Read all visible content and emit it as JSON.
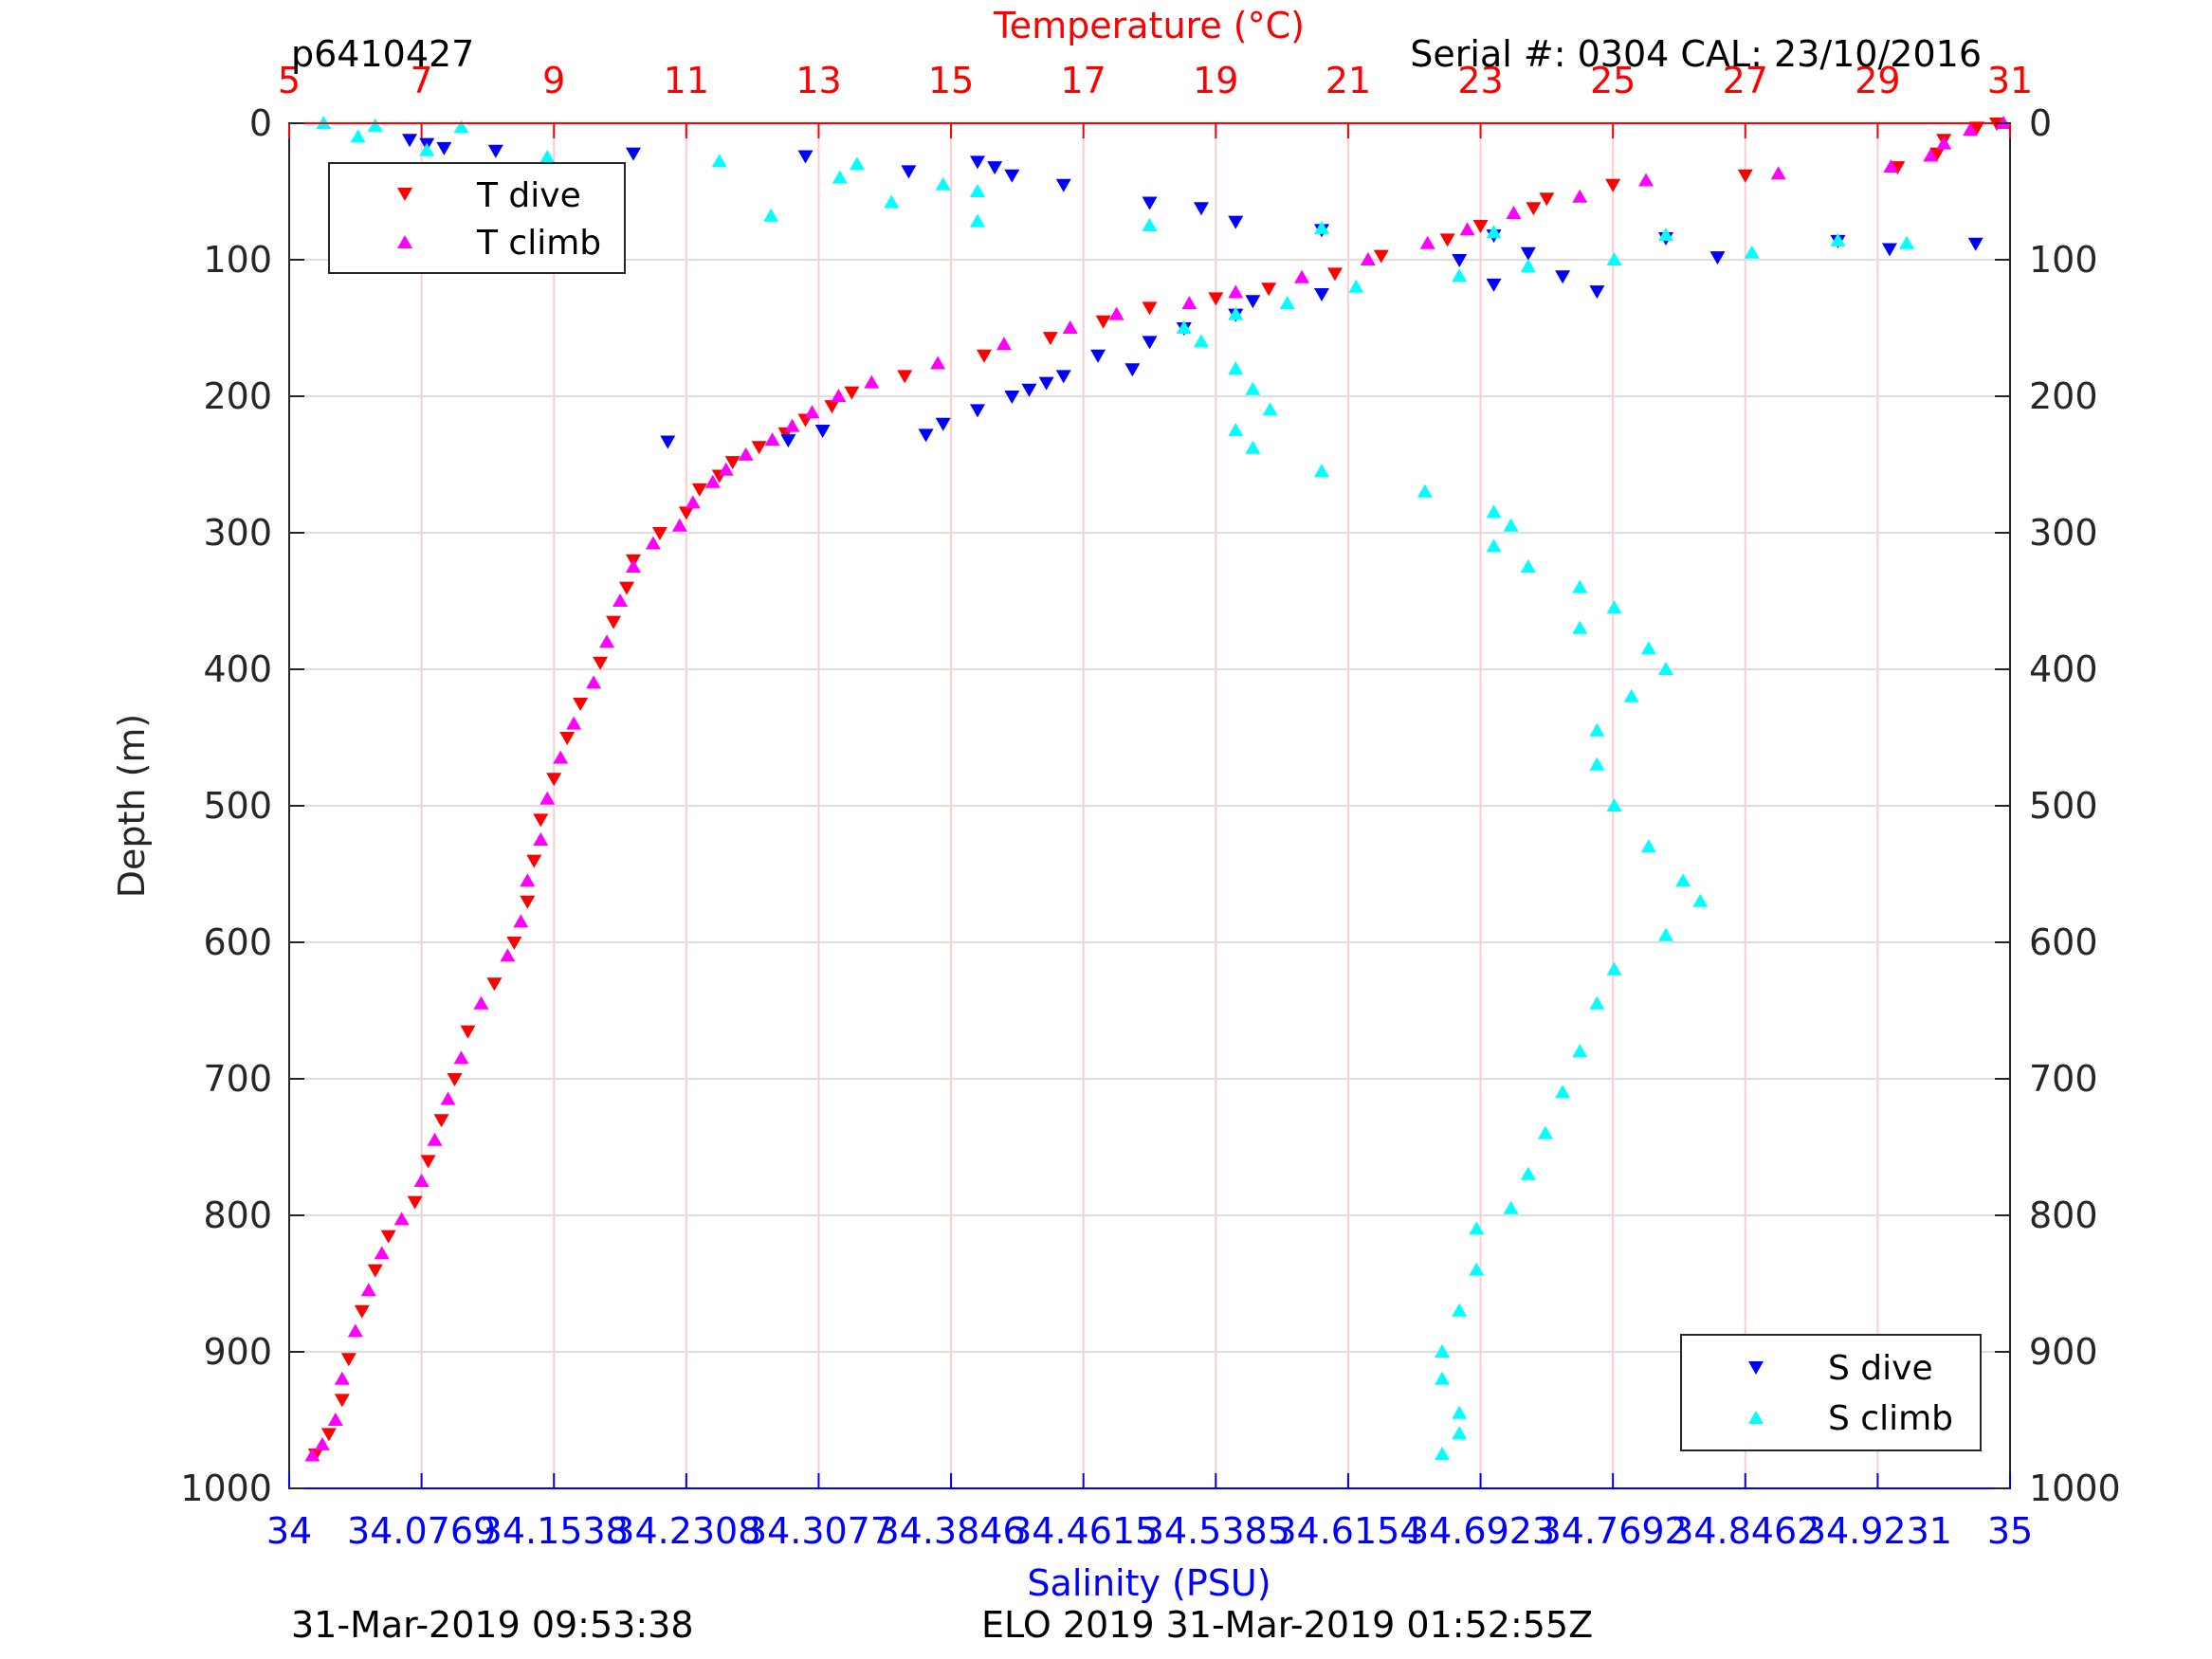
{
  "header": {
    "glider_id": "p6410427",
    "serial": "Serial #: 0304  CAL: 23/10/2016"
  },
  "footer": {
    "left": "31-Mar-2019 09:53:38",
    "right": "ELO 2019 31-Mar-2019 01:52:55Z"
  },
  "colors": {
    "t_dive": "#ff0000",
    "t_climb": "#ff00ff",
    "s_dive": "#0000ff",
    "s_climb": "#00ffff",
    "temp_axis": "#ff0000",
    "sal_axis": "#0000ff",
    "grid_temp": "#ffcccc",
    "grid_depth": "#dddddd"
  },
  "chart_data": {
    "type": "scatter",
    "title": "",
    "ylabel": "Depth (m)",
    "ylim": [
      0,
      1000
    ],
    "y_reversed": true,
    "y_ticks": [
      "0",
      "100",
      "200",
      "300",
      "400",
      "500",
      "600",
      "700",
      "800",
      "900",
      "1000"
    ],
    "temperature_axis": {
      "label": "Temperature (°C)",
      "position": "top",
      "range": [
        5,
        31
      ],
      "ticks": [
        "5",
        "7",
        "9",
        "11",
        "13",
        "15",
        "17",
        "19",
        "21",
        "23",
        "25",
        "27",
        "29",
        "31"
      ]
    },
    "salinity_axis": {
      "label": "Salinity (PSU)",
      "position": "bottom",
      "range": [
        34,
        35
      ],
      "ticks": [
        "34",
        "34.0769",
        "34.1538",
        "34.2308",
        "34.3077",
        "34.3846",
        "34.4615",
        "34.5385",
        "34.6154",
        "34.6923",
        "34.7692",
        "34.8462",
        "34.9231",
        "35"
      ]
    },
    "grid": true,
    "legend_temperature": {
      "placement": "top-left",
      "entries": [
        "T dive",
        "T climb"
      ]
    },
    "legend_salinity": {
      "placement": "bottom-right",
      "entries": [
        "S dive",
        "S climb"
      ]
    },
    "series": [
      {
        "name": "T dive",
        "axis": "temperature",
        "marker": "triangle-down",
        "points": [
          [
            30.8,
            0
          ],
          [
            30.5,
            3
          ],
          [
            30.0,
            12
          ],
          [
            29.9,
            22
          ],
          [
            29.3,
            32
          ],
          [
            27,
            38
          ],
          [
            25,
            45
          ],
          [
            24,
            55
          ],
          [
            23.8,
            62
          ],
          [
            23,
            75
          ],
          [
            22.5,
            85
          ],
          [
            21.5,
            97
          ],
          [
            20.8,
            110
          ],
          [
            19.8,
            121
          ],
          [
            19,
            128
          ],
          [
            18,
            135
          ],
          [
            17.3,
            145
          ],
          [
            16.5,
            157
          ],
          [
            15.5,
            170
          ],
          [
            14.3,
            185
          ],
          [
            13.5,
            197
          ],
          [
            13.2,
            207
          ],
          [
            12.8,
            217
          ],
          [
            12.5,
            227
          ],
          [
            12.1,
            237
          ],
          [
            11.7,
            248
          ],
          [
            11.5,
            258
          ],
          [
            11.2,
            268
          ],
          [
            11.0,
            285
          ],
          [
            10.6,
            300
          ],
          [
            10.2,
            320
          ],
          [
            10.1,
            340
          ],
          [
            9.9,
            365
          ],
          [
            9.7,
            395
          ],
          [
            9.4,
            425
          ],
          [
            9.2,
            450
          ],
          [
            9.0,
            480
          ],
          [
            8.8,
            510
          ],
          [
            8.7,
            540
          ],
          [
            8.6,
            570
          ],
          [
            8.4,
            600
          ],
          [
            8.1,
            630
          ],
          [
            7.7,
            665
          ],
          [
            7.5,
            700
          ],
          [
            7.3,
            730
          ],
          [
            7.1,
            760
          ],
          [
            6.9,
            790
          ],
          [
            6.5,
            815
          ],
          [
            6.3,
            840
          ],
          [
            6.1,
            870
          ],
          [
            5.9,
            905
          ],
          [
            5.8,
            935
          ],
          [
            5.6,
            960
          ],
          [
            5.4,
            975
          ]
        ]
      },
      {
        "name": "T climb",
        "axis": "temperature",
        "marker": "triangle-up",
        "points": [
          [
            30.9,
            0
          ],
          [
            30.4,
            5
          ],
          [
            30.0,
            15
          ],
          [
            29.8,
            24
          ],
          [
            29.2,
            32
          ],
          [
            27.5,
            37
          ],
          [
            25.5,
            42
          ],
          [
            24.5,
            54
          ],
          [
            23.5,
            66
          ],
          [
            22.8,
            78
          ],
          [
            22.2,
            88
          ],
          [
            21.3,
            100
          ],
          [
            20.3,
            113
          ],
          [
            19.3,
            124
          ],
          [
            18.6,
            132
          ],
          [
            17.5,
            140
          ],
          [
            16.8,
            150
          ],
          [
            15.8,
            162
          ],
          [
            14.8,
            176
          ],
          [
            13.8,
            190
          ],
          [
            13.3,
            200
          ],
          [
            12.9,
            212
          ],
          [
            12.6,
            222
          ],
          [
            12.3,
            232
          ],
          [
            11.9,
            243
          ],
          [
            11.6,
            254
          ],
          [
            11.4,
            263
          ],
          [
            11.1,
            278
          ],
          [
            10.9,
            295
          ],
          [
            10.5,
            308
          ],
          [
            10.2,
            325
          ],
          [
            10.0,
            350
          ],
          [
            9.8,
            380
          ],
          [
            9.6,
            410
          ],
          [
            9.3,
            440
          ],
          [
            9.1,
            465
          ],
          [
            8.9,
            495
          ],
          [
            8.8,
            525
          ],
          [
            8.6,
            555
          ],
          [
            8.5,
            585
          ],
          [
            8.3,
            610
          ],
          [
            7.9,
            645
          ],
          [
            7.6,
            685
          ],
          [
            7.4,
            715
          ],
          [
            7.2,
            745
          ],
          [
            7.0,
            775
          ],
          [
            6.7,
            803
          ],
          [
            6.4,
            828
          ],
          [
            6.2,
            855
          ],
          [
            6.0,
            885
          ],
          [
            5.8,
            920
          ],
          [
            5.7,
            950
          ],
          [
            5.5,
            968
          ],
          [
            5.35,
            976
          ]
        ]
      },
      {
        "name": "S dive",
        "axis": "salinity",
        "marker": "triangle-down",
        "points": [
          [
            34.07,
            12
          ],
          [
            34.08,
            15
          ],
          [
            34.09,
            18
          ],
          [
            34.12,
            20
          ],
          [
            34.2,
            22
          ],
          [
            34.3,
            24
          ],
          [
            34.4,
            28
          ],
          [
            34.41,
            32
          ],
          [
            34.36,
            35
          ],
          [
            34.42,
            38
          ],
          [
            34.45,
            45
          ],
          [
            34.5,
            58
          ],
          [
            34.53,
            62
          ],
          [
            34.55,
            72
          ],
          [
            34.6,
            78
          ],
          [
            34.7,
            82
          ],
          [
            34.8,
            84
          ],
          [
            34.9,
            86
          ],
          [
            34.98,
            88
          ],
          [
            34.93,
            92
          ],
          [
            34.83,
            98
          ],
          [
            34.72,
            95
          ],
          [
            34.68,
            100
          ],
          [
            34.74,
            112
          ],
          [
            34.76,
            123
          ],
          [
            34.7,
            118
          ],
          [
            34.6,
            125
          ],
          [
            34.56,
            130
          ],
          [
            34.55,
            140
          ],
          [
            34.52,
            150
          ],
          [
            34.5,
            160
          ],
          [
            34.47,
            170
          ],
          [
            34.49,
            180
          ],
          [
            34.44,
            190
          ],
          [
            34.42,
            200
          ],
          [
            34.4,
            210
          ],
          [
            34.38,
            220
          ],
          [
            34.37,
            228
          ],
          [
            34.31,
            225
          ],
          [
            34.29,
            232
          ],
          [
            34.22,
            233
          ],
          [
            34.45,
            185
          ],
          [
            34.43,
            195
          ]
        ]
      },
      {
        "name": "S climb",
        "axis": "salinity",
        "marker": "triangle-up",
        "points": [
          [
            34.02,
            0
          ],
          [
            34.05,
            2
          ],
          [
            34.1,
            3
          ],
          [
            34.04,
            10
          ],
          [
            34.08,
            20
          ],
          [
            34.15,
            25
          ],
          [
            34.25,
            28
          ],
          [
            34.33,
            30
          ],
          [
            34.32,
            40
          ],
          [
            34.38,
            45
          ],
          [
            34.4,
            50
          ],
          [
            34.35,
            58
          ],
          [
            34.28,
            68
          ],
          [
            34.4,
            72
          ],
          [
            34.5,
            75
          ],
          [
            34.6,
            77
          ],
          [
            34.7,
            80
          ],
          [
            34.8,
            82
          ],
          [
            34.9,
            86
          ],
          [
            34.94,
            88
          ],
          [
            34.85,
            95
          ],
          [
            34.77,
            100
          ],
          [
            34.72,
            105
          ],
          [
            34.68,
            112
          ],
          [
            34.62,
            120
          ],
          [
            34.58,
            132
          ],
          [
            34.55,
            140
          ],
          [
            34.52,
            150
          ],
          [
            34.53,
            160
          ],
          [
            34.55,
            180
          ],
          [
            34.56,
            195
          ],
          [
            34.57,
            210
          ],
          [
            34.55,
            225
          ],
          [
            34.56,
            238
          ],
          [
            34.6,
            255
          ],
          [
            34.66,
            270
          ],
          [
            34.7,
            285
          ],
          [
            34.71,
            295
          ],
          [
            34.7,
            310
          ],
          [
            34.72,
            325
          ],
          [
            34.75,
            340
          ],
          [
            34.77,
            355
          ],
          [
            34.75,
            370
          ],
          [
            34.79,
            385
          ],
          [
            34.8,
            400
          ],
          [
            34.78,
            420
          ],
          [
            34.76,
            445
          ],
          [
            34.76,
            470
          ],
          [
            34.77,
            500
          ],
          [
            34.79,
            530
          ],
          [
            34.81,
            555
          ],
          [
            34.82,
            570
          ],
          [
            34.8,
            595
          ],
          [
            34.77,
            620
          ],
          [
            34.76,
            645
          ],
          [
            34.75,
            680
          ],
          [
            34.74,
            710
          ],
          [
            34.73,
            740
          ],
          [
            34.72,
            770
          ],
          [
            34.71,
            795
          ],
          [
            34.69,
            810
          ],
          [
            34.69,
            840
          ],
          [
            34.68,
            870
          ],
          [
            34.67,
            900
          ],
          [
            34.67,
            920
          ],
          [
            34.68,
            945
          ],
          [
            34.68,
            960
          ],
          [
            34.67,
            975
          ]
        ]
      }
    ]
  }
}
